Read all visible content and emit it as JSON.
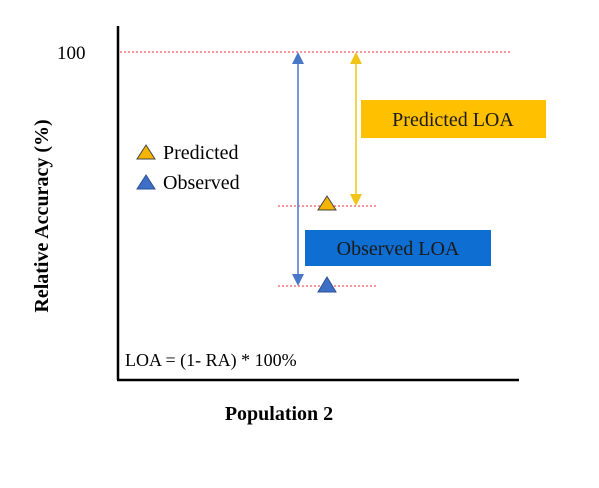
{
  "diagram": {
    "ylabel": "Relative Accuracy (%)",
    "xlabel": "Population 2",
    "tick_100": "100",
    "legend": {
      "predicted": "Predicted",
      "observed": "Observed"
    },
    "predicted_loa_label": "Predicted LOA",
    "observed_loa_label": "Observed LOA",
    "formula": "LOA = (1- RA) * 100%",
    "colors": {
      "predicted": "#f5b400",
      "observed": "#1f6fd1",
      "observed_arrow": "#4a78c8",
      "predicted_arrow": "#f0c419",
      "reference_line": "#ee3333",
      "axis": "#000000"
    }
  }
}
